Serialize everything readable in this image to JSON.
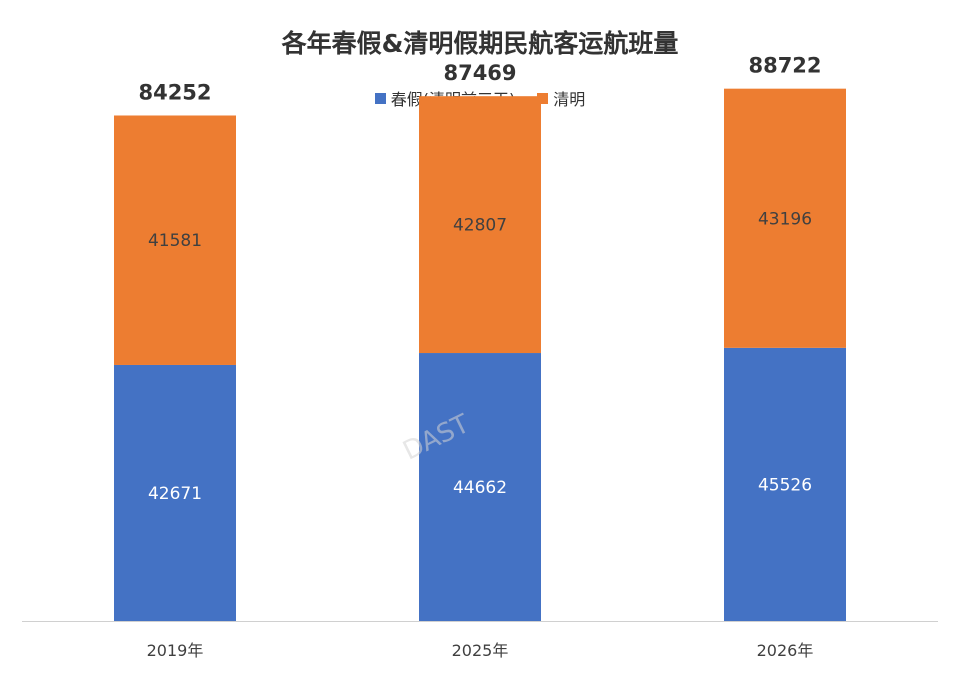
{
  "chart_data": {
    "type": "bar",
    "stacked": true,
    "title": "各年春假&清明假期民航客运航班量",
    "categories": [
      "2019年",
      "2025年",
      "2026年"
    ],
    "series": [
      {
        "name": "春假(清明前三天)",
        "values": [
          42671,
          44662,
          45526
        ],
        "color": "#4472C4"
      },
      {
        "name": "清明",
        "values": [
          41581,
          42807,
          43196
        ],
        "color": "#ED7D31"
      }
    ],
    "totals": [
      84252,
      87469,
      88722
    ],
    "xlabel": "",
    "ylabel": "",
    "ylim": [
      0,
      90000
    ],
    "grid": false,
    "legend_position": "top"
  },
  "watermark": "DAST"
}
